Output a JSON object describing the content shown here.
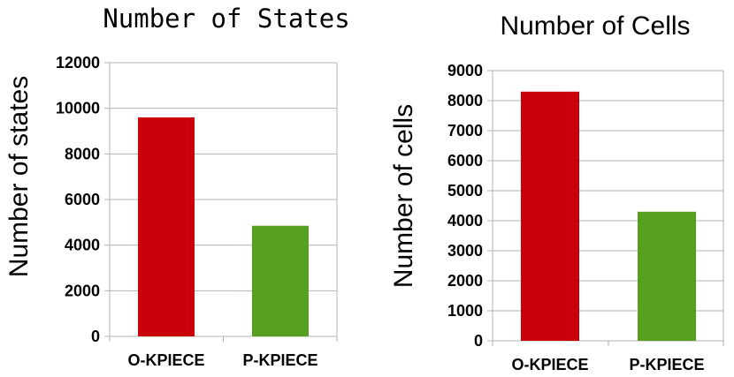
{
  "chart_data": [
    {
      "type": "bar",
      "title": "Number of States",
      "xlabel": "",
      "ylabel": "Number of states",
      "categories": [
        "O-KPIECE",
        "P-KPIECE"
      ],
      "values": [
        9600,
        4850
      ],
      "bar_colors": [
        "#c9000b",
        "#56a01f"
      ],
      "ylim": [
        0,
        12000
      ],
      "yticks": [
        "0",
        "2000",
        "4000",
        "6000",
        "8000",
        "10000",
        "12000"
      ],
      "grid": true,
      "legend": "none"
    },
    {
      "type": "bar",
      "title": "Number of Cells",
      "xlabel": "",
      "ylabel": "Number of cells",
      "categories": [
        "O-KPIECE",
        "P-KPIECE"
      ],
      "values": [
        8300,
        4300
      ],
      "bar_colors": [
        "#c9000b",
        "#56a01f"
      ],
      "ylim": [
        0,
        9000
      ],
      "yticks": [
        "0",
        "1000",
        "2000",
        "3000",
        "4000",
        "5000",
        "6000",
        "7000",
        "8000",
        "9000"
      ],
      "grid": true,
      "legend": "none"
    }
  ]
}
